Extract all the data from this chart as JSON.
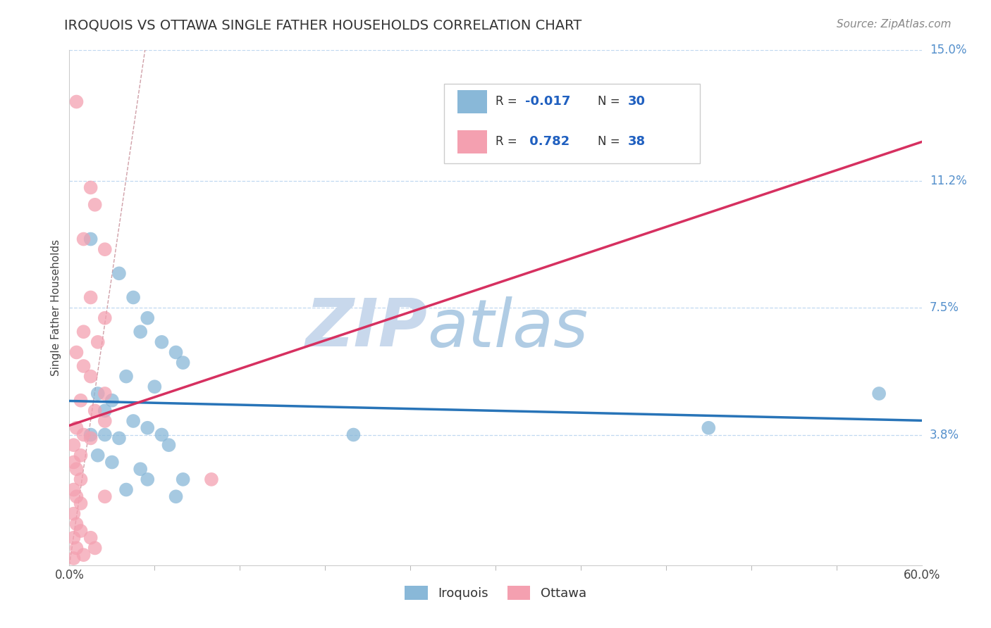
{
  "title": "IROQUOIS VS OTTAWA SINGLE FATHER HOUSEHOLDS CORRELATION CHART",
  "source": "Source: ZipAtlas.com",
  "ylabel": "Single Father Households",
  "ytick_values": [
    3.8,
    7.5,
    11.2,
    15.0
  ],
  "xlim": [
    0.0,
    60.0
  ],
  "ylim": [
    0.0,
    15.0
  ],
  "iroquois_R": -0.017,
  "iroquois_N": 30,
  "ottawa_R": 0.782,
  "ottawa_N": 38,
  "iroquois_color": "#89b8d8",
  "ottawa_color": "#f4a0b0",
  "iroquois_line_color": "#2874b8",
  "ottawa_line_color": "#d63060",
  "ref_line_color": "#d0a0a8",
  "grid_color": "#c0d8f0",
  "background_color": "#ffffff",
  "iroquois_scatter": [
    [
      1.5,
      9.5
    ],
    [
      3.5,
      8.5
    ],
    [
      4.5,
      7.8
    ],
    [
      5.5,
      7.2
    ],
    [
      5.0,
      6.8
    ],
    [
      6.5,
      6.5
    ],
    [
      7.5,
      6.2
    ],
    [
      8.0,
      5.9
    ],
    [
      4.0,
      5.5
    ],
    [
      6.0,
      5.2
    ],
    [
      2.0,
      5.0
    ],
    [
      3.0,
      4.8
    ],
    [
      2.5,
      4.5
    ],
    [
      4.5,
      4.2
    ],
    [
      5.5,
      4.0
    ],
    [
      1.5,
      3.8
    ],
    [
      2.5,
      3.8
    ],
    [
      3.5,
      3.7
    ],
    [
      6.5,
      3.8
    ],
    [
      7.0,
      3.5
    ],
    [
      2.0,
      3.2
    ],
    [
      3.0,
      3.0
    ],
    [
      5.0,
      2.8
    ],
    [
      8.0,
      2.5
    ],
    [
      4.0,
      2.2
    ],
    [
      5.5,
      2.5
    ],
    [
      7.5,
      2.0
    ],
    [
      20.0,
      3.8
    ],
    [
      45.0,
      4.0
    ],
    [
      57.0,
      5.0
    ]
  ],
  "ottawa_scatter": [
    [
      0.5,
      13.5
    ],
    [
      1.5,
      11.0
    ],
    [
      1.8,
      10.5
    ],
    [
      1.0,
      9.5
    ],
    [
      2.5,
      9.2
    ],
    [
      1.5,
      7.8
    ],
    [
      2.5,
      7.2
    ],
    [
      1.0,
      6.8
    ],
    [
      2.0,
      6.5
    ],
    [
      0.5,
      6.2
    ],
    [
      1.0,
      5.8
    ],
    [
      1.5,
      5.5
    ],
    [
      2.5,
      5.0
    ],
    [
      0.8,
      4.8
    ],
    [
      1.8,
      4.5
    ],
    [
      2.5,
      4.2
    ],
    [
      0.5,
      4.0
    ],
    [
      1.0,
      3.8
    ],
    [
      1.5,
      3.7
    ],
    [
      0.3,
      3.5
    ],
    [
      0.8,
      3.2
    ],
    [
      0.3,
      3.0
    ],
    [
      0.5,
      2.8
    ],
    [
      0.8,
      2.5
    ],
    [
      0.3,
      2.2
    ],
    [
      0.5,
      2.0
    ],
    [
      0.8,
      1.8
    ],
    [
      0.3,
      1.5
    ],
    [
      0.5,
      1.2
    ],
    [
      0.8,
      1.0
    ],
    [
      0.3,
      0.8
    ],
    [
      1.5,
      0.8
    ],
    [
      0.5,
      0.5
    ],
    [
      1.8,
      0.5
    ],
    [
      1.0,
      0.3
    ],
    [
      0.3,
      0.2
    ],
    [
      2.5,
      2.0
    ],
    [
      10.0,
      2.5
    ]
  ],
  "watermark_zip_color": "#c8d8ec",
  "watermark_atlas_color": "#b0cce4"
}
